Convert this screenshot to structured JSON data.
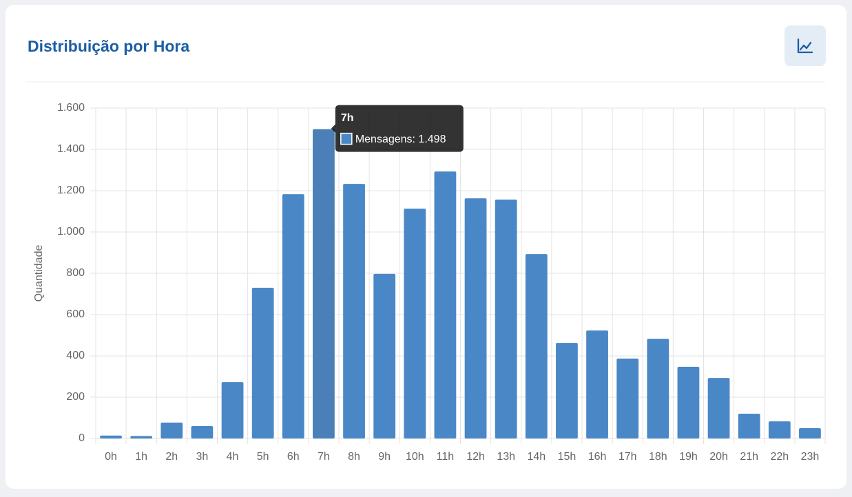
{
  "chart_data": {
    "type": "bar",
    "title": "Distribuição por Hora",
    "y_label": "Quantidade",
    "categories": [
      "0h",
      "1h",
      "2h",
      "3h",
      "4h",
      "5h",
      "6h",
      "7h",
      "8h",
      "9h",
      "10h",
      "11h",
      "12h",
      "13h",
      "14h",
      "15h",
      "16h",
      "17h",
      "18h",
      "19h",
      "20h",
      "21h",
      "22h",
      "23h"
    ],
    "series": [
      {
        "name": "Mensagens",
        "color": "#4a87c6",
        "values": [
          14,
          12,
          77,
          60,
          273,
          730,
          1183,
          1498,
          1233,
          797,
          1113,
          1293,
          1163,
          1157,
          893,
          463,
          523,
          387,
          483,
          347,
          293,
          120,
          83,
          50
        ]
      }
    ],
    "ylim": [
      0,
      1600
    ],
    "yticks": [
      0,
      200,
      400,
      600,
      800,
      {
        "value": 1000,
        "label": "1.000"
      },
      {
        "value": 1200,
        "label": "1.200"
      },
      {
        "value": 1400,
        "label": "1.400"
      },
      {
        "value": 1600,
        "label": "1.600"
      }
    ],
    "grid": true,
    "tooltip": {
      "title": "7h",
      "text": "Mensagens: 1.498"
    }
  }
}
